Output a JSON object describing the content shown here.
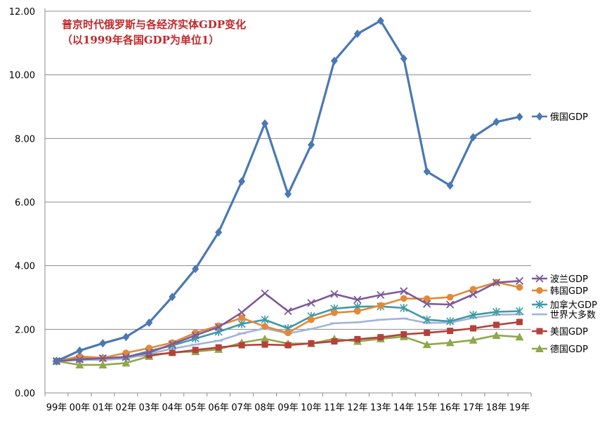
{
  "chart_data": {
    "type": "line",
    "title": "普京时代俄罗斯与各经济实体GDP变化",
    "subtitle": "（以1999年各国GDP为单位1）",
    "xlabel": "",
    "ylabel": "",
    "ylim": [
      0,
      12
    ],
    "yticks": [
      "0.00",
      "2.00",
      "4.00",
      "6.00",
      "8.00",
      "10.00",
      "12.00"
    ],
    "categories": [
      "99年",
      "00年",
      "01年",
      "02年",
      "03年",
      "04年",
      "05年",
      "06年",
      "07年",
      "08年",
      "09年",
      "10年",
      "11年",
      "12年",
      "13年",
      "14年",
      "15年",
      "16年",
      "17年",
      "18年",
      "19年"
    ],
    "grid": true,
    "series": [
      {
        "name": "俄国GDP",
        "color": "#4a78b4",
        "marker": "diamond",
        "values": [
          1.0,
          1.33,
          1.56,
          1.76,
          2.21,
          3.02,
          3.9,
          5.05,
          6.65,
          8.47,
          6.25,
          7.8,
          10.44,
          11.29,
          11.7,
          10.51,
          6.96,
          6.52,
          8.04,
          8.52,
          8.68
        ]
      },
      {
        "name": "波兰GDP",
        "color": "#7d5a9a",
        "marker": "x",
        "values": [
          1.0,
          1.05,
          1.09,
          1.13,
          1.27,
          1.53,
          1.81,
          2.07,
          2.53,
          3.13,
          2.57,
          2.83,
          3.11,
          2.93,
          3.08,
          3.2,
          2.8,
          2.78,
          3.1,
          3.47,
          3.52
        ]
      },
      {
        "name": "韩国GDP",
        "color": "#e38936",
        "marker": "circle",
        "values": [
          1.0,
          1.15,
          1.1,
          1.26,
          1.41,
          1.58,
          1.89,
          2.11,
          2.36,
          2.09,
          1.89,
          2.3,
          2.52,
          2.57,
          2.75,
          2.97,
          2.96,
          3.01,
          3.26,
          3.48,
          3.32
        ]
      },
      {
        "name": "加拿大GDP",
        "color": "#3e9aa6",
        "marker": "star",
        "values": [
          1.0,
          1.08,
          1.09,
          1.12,
          1.32,
          1.49,
          1.71,
          1.92,
          2.17,
          2.3,
          2.03,
          2.41,
          2.65,
          2.71,
          2.72,
          2.67,
          2.3,
          2.25,
          2.45,
          2.55,
          2.57
        ]
      },
      {
        "name": "世界大多数",
        "color": "#a3b4d8",
        "marker": "dash",
        "values": [
          1.0,
          1.04,
          1.04,
          1.08,
          1.23,
          1.39,
          1.52,
          1.64,
          1.87,
          2.03,
          1.87,
          2.01,
          2.19,
          2.22,
          2.3,
          2.34,
          2.2,
          2.21,
          2.36,
          2.46,
          2.47
        ]
      },
      {
        "name": "美国GDP",
        "color": "#b5403a",
        "marker": "square",
        "values": [
          1.0,
          1.06,
          1.09,
          1.13,
          1.19,
          1.26,
          1.35,
          1.43,
          1.5,
          1.52,
          1.5,
          1.56,
          1.62,
          1.69,
          1.75,
          1.84,
          1.89,
          1.95,
          2.03,
          2.14,
          2.23
        ]
      },
      {
        "name": "德国GDP",
        "color": "#8fa84a",
        "marker": "triangle",
        "values": [
          1.0,
          0.88,
          0.88,
          0.94,
          1.15,
          1.28,
          1.3,
          1.37,
          1.58,
          1.7,
          1.55,
          1.55,
          1.7,
          1.62,
          1.7,
          1.77,
          1.52,
          1.58,
          1.66,
          1.81,
          1.76
        ]
      }
    ]
  }
}
